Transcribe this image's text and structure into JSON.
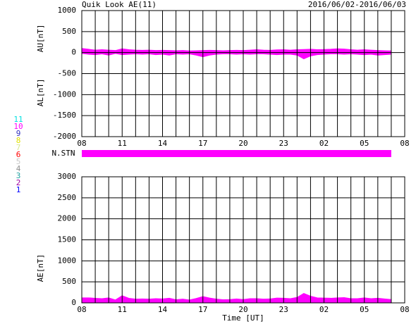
{
  "title": "Quik Look AE(11)",
  "date_range": "2016/06/02-2016/06/03",
  "xlabel": "Time [UT]",
  "legend": [
    {
      "label": "11",
      "color": "#00e0e0"
    },
    {
      "label": "10",
      "color": "#ff00ff"
    },
    {
      "label": "9",
      "color": "#3030c0"
    },
    {
      "label": "8",
      "color": "#e0e000"
    },
    {
      "label": "7",
      "color": "#d8e890"
    },
    {
      "label": "6",
      "color": "#ff0000"
    },
    {
      "label": "5",
      "color": "#c8c8c8"
    },
    {
      "label": "4",
      "color": "#909090"
    },
    {
      "label": "3",
      "color": "#20a0a0"
    },
    {
      "label": "2",
      "color": "#a000a0"
    },
    {
      "label": "1",
      "color": "#0000ff"
    }
  ],
  "nstn": {
    "label": "N.STN",
    "start": 0,
    "end": 23,
    "color": "#ff00ff"
  },
  "chart_data": [
    {
      "type": "area",
      "x": [
        0,
        0.5,
        1,
        1.5,
        2,
        2.5,
        3,
        3.5,
        4,
        4.5,
        5,
        5.5,
        6,
        6.5,
        7,
        7.5,
        8,
        8.5,
        9,
        9.5,
        10,
        10.5,
        11,
        11.5,
        12,
        12.5,
        13,
        13.5,
        14,
        14.5,
        15,
        15.5,
        16,
        16.5,
        17,
        17.5,
        18,
        18.5,
        19,
        19.5,
        20,
        20.5,
        21,
        21.5,
        22,
        22.5,
        23
      ],
      "series": [
        {
          "name": "AU[nT]",
          "color": "#ff00ff",
          "values": [
            100,
            80,
            60,
            70,
            60,
            50,
            90,
            70,
            60,
            55,
            60,
            50,
            55,
            50,
            45,
            50,
            40,
            45,
            50,
            55,
            50,
            45,
            50,
            55,
            50,
            60,
            70,
            60,
            55,
            65,
            70,
            60,
            70,
            75,
            80,
            70,
            75,
            80,
            90,
            85,
            70,
            60,
            70,
            60,
            50,
            45,
            40
          ]
        },
        {
          "name": "AL[nT]",
          "color": "#ff00ff",
          "values": [
            -20,
            -40,
            -50,
            -30,
            -60,
            -20,
            -50,
            -40,
            -30,
            -40,
            -30,
            -50,
            -40,
            -60,
            -30,
            -40,
            -30,
            -60,
            -100,
            -60,
            -40,
            -30,
            -30,
            -40,
            -30,
            -40,
            -30,
            -30,
            -40,
            -50,
            -40,
            -40,
            -60,
            -150,
            -80,
            -50,
            -40,
            -30,
            -30,
            -40,
            -30,
            -40,
            -50,
            -40,
            -60,
            -50,
            -40
          ]
        }
      ],
      "xlim": [
        0,
        24
      ],
      "xticks": [
        {
          "value": 0,
          "label": "08"
        },
        {
          "value": 3,
          "label": "11"
        },
        {
          "value": 6,
          "label": "14"
        },
        {
          "value": 9,
          "label": "17"
        },
        {
          "value": 12,
          "label": "20"
        },
        {
          "value": 15,
          "label": "23"
        },
        {
          "value": 18,
          "label": "02"
        },
        {
          "value": 21,
          "label": "05"
        },
        {
          "value": 24,
          "label": "08"
        }
      ],
      "xgrid": [
        1,
        2,
        4,
        5,
        7,
        8,
        10,
        11,
        13,
        14,
        16,
        17,
        19,
        20,
        22,
        23
      ],
      "ylim": [
        -2000,
        1000
      ],
      "yticks": [
        -2000,
        -1500,
        -1000,
        -500,
        0,
        500,
        1000
      ]
    },
    {
      "type": "area",
      "x": [
        0,
        0.5,
        1,
        1.5,
        2,
        2.5,
        3,
        3.5,
        4,
        4.5,
        5,
        5.5,
        6,
        6.5,
        7,
        7.5,
        8,
        8.5,
        9,
        9.5,
        10,
        10.5,
        11,
        11.5,
        12,
        12.5,
        13,
        13.5,
        14,
        14.5,
        15,
        15.5,
        16,
        16.5,
        17,
        17.5,
        18,
        18.5,
        19,
        19.5,
        20,
        20.5,
        21,
        21.5,
        22,
        22.5,
        23
      ],
      "series": [
        {
          "name": "AE[nT]",
          "color": "#ff00ff",
          "values": [
            120,
            120,
            110,
            100,
            120,
            70,
            170,
            110,
            90,
            95,
            90,
            100,
            95,
            110,
            75,
            90,
            70,
            105,
            150,
            115,
            90,
            75,
            80,
            95,
            80,
            100,
            100,
            90,
            95,
            115,
            110,
            100,
            130,
            225,
            160,
            120,
            115,
            110,
            120,
            125,
            100,
            100,
            120,
            100,
            110,
            95,
            80
          ]
        }
      ],
      "xlim": [
        0,
        24
      ],
      "xticks": [
        {
          "value": 0,
          "label": "08"
        },
        {
          "value": 3,
          "label": "11"
        },
        {
          "value": 6,
          "label": "14"
        },
        {
          "value": 9,
          "label": "17"
        },
        {
          "value": 12,
          "label": "20"
        },
        {
          "value": 15,
          "label": "23"
        },
        {
          "value": 18,
          "label": "02"
        },
        {
          "value": 21,
          "label": "05"
        },
        {
          "value": 24,
          "label": "08"
        }
      ],
      "xgrid": [
        1,
        2,
        4,
        5,
        7,
        8,
        10,
        11,
        13,
        14,
        16,
        17,
        19,
        20,
        22,
        23
      ],
      "ylim": [
        0,
        3000
      ],
      "yticks": [
        0,
        500,
        1000,
        1500,
        2000,
        2500,
        3000
      ]
    }
  ]
}
